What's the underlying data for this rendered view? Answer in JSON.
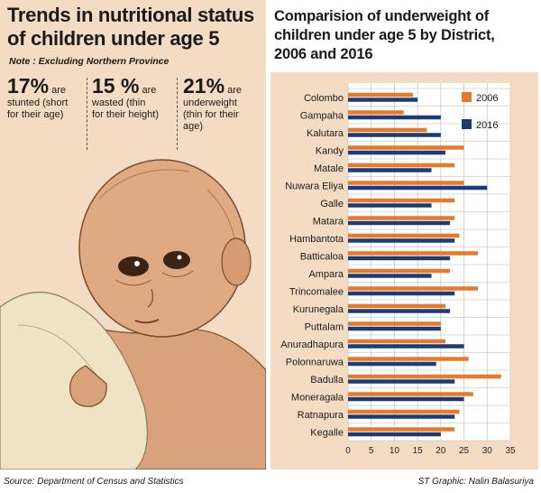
{
  "left": {
    "title_line1": "Trends in nutritional status",
    "title_line2": "of children under age 5",
    "note": "Note : Excluding Northern Province",
    "stats": [
      {
        "big": "17%",
        "rest": " are",
        "desc1": "stunted (short",
        "desc2": "for their age)",
        "desc3": ""
      },
      {
        "big": "15 %",
        "rest": " are",
        "desc1": "wasted (thin",
        "desc2": "for their height)",
        "desc3": ""
      },
      {
        "big": "21%",
        "rest": " are",
        "desc1": "underweight",
        "desc2": "(thin for their",
        "desc3": "age)"
      }
    ]
  },
  "right": {
    "title_line1": "Comparision of underweight of",
    "title_line2": "children under age 5 by District,",
    "title_line3": "2006 and 2016"
  },
  "footer": {
    "source": "Source: Department of Census and Statistics",
    "credit": "ST Graphic: Nalin Balasuriya"
  },
  "chart_data": {
    "type": "bar",
    "orientation": "horizontal",
    "categories": [
      "Colombo",
      "Gampaha",
      "Kalutara",
      "Kandy",
      "Matale",
      "Nuwara Eliya",
      "Galle",
      "Matara",
      "Hambantota",
      "Batticaloa",
      "Ampara",
      "Trincomalee",
      "Kurunegala",
      "Puttalam",
      "Anuradhapura",
      "Polonnaruwa",
      "Badulla",
      "Moneragala",
      "Ratnapura",
      "Kegalle"
    ],
    "series": [
      {
        "name": "2006",
        "color": "#e8792b",
        "values": [
          14,
          12,
          17,
          25,
          23,
          25,
          23,
          23,
          24,
          28,
          22,
          28,
          21,
          20,
          21,
          26,
          33,
          27,
          24,
          23
        ]
      },
      {
        "name": "2016",
        "color": "#1c3d73",
        "values": [
          15,
          20,
          20,
          21,
          18,
          30,
          18,
          22,
          23,
          22,
          18,
          23,
          22,
          20,
          25,
          19,
          23,
          25,
          23,
          20
        ]
      }
    ],
    "xlim": [
      0,
      35
    ],
    "xticks": [
      "0",
      "5",
      "10",
      "15",
      "20",
      "25",
      "30",
      "35"
    ],
    "grid": "vertical",
    "legend": "top-right"
  }
}
